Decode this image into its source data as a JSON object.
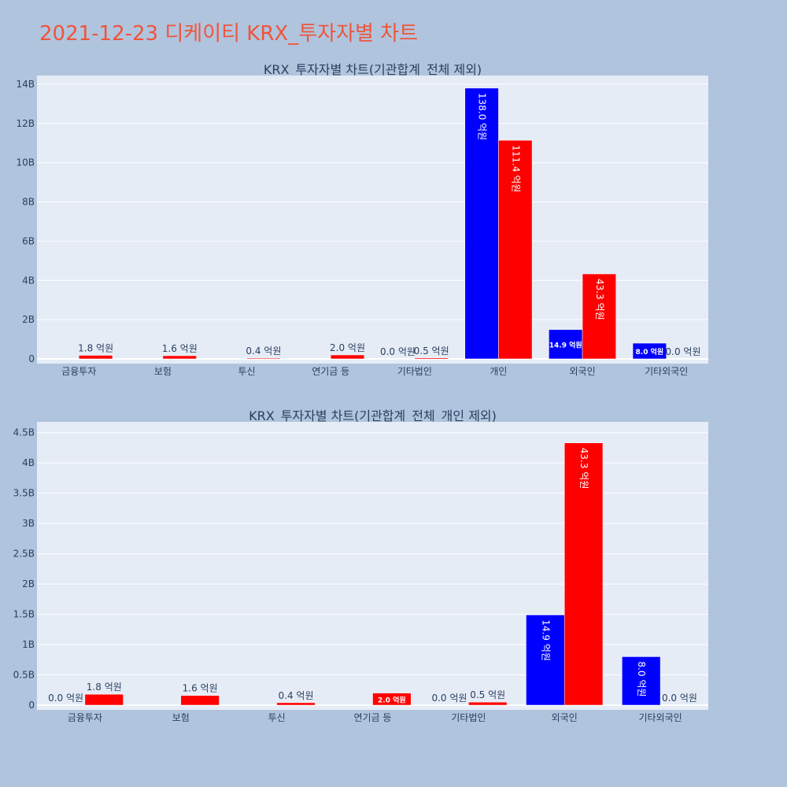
{
  "page_title": "2021-12-23 디케이티 KRX_투자자별 차트",
  "colors": {
    "buy": "#0000ff",
    "sell": "#ff0000",
    "plot_bg": "#e5ecf6",
    "page_bg": "#b0c4de",
    "title": "#ef553b"
  },
  "chart_data": [
    {
      "type": "bar",
      "title": "KRX_투자자별 차트(기관합계_전체 제외)",
      "categories": [
        "금융투자",
        "보험",
        "투신",
        "연기금 등",
        "기타법인",
        "개인",
        "외국인",
        "기타외국인"
      ],
      "series": [
        {
          "values": [
            null,
            null,
            null,
            null,
            0,
            13800000000,
            1490000000,
            800000000
          ],
          "labels": [
            "",
            "",
            "",
            "",
            "0.0 억원",
            "138.0 억원",
            "14.9 억원",
            "8.0 억원"
          ]
        },
        {
          "values": [
            180000000,
            160000000,
            40000000,
            200000000,
            50000000,
            11140000000,
            4330000000,
            0
          ],
          "labels": [
            "1.8 억원",
            "1.6 억원",
            "0.4 억원",
            "2.0 억원",
            "0.5 억원",
            "111.4 억원",
            "43.3 억원",
            "0.0 억원"
          ]
        }
      ],
      "ylim": [
        0,
        14200000000
      ],
      "yticks": [
        0,
        2000000000,
        4000000000,
        6000000000,
        8000000000,
        10000000000,
        12000000000,
        14000000000
      ],
      "ytick_labels": [
        "0",
        "2B",
        "4B",
        "6B",
        "8B",
        "10B",
        "12B",
        "14B"
      ],
      "grid": true
    },
    {
      "type": "bar",
      "title": "KRX_투자자별 차트(기관합계_전체_개인 제외)",
      "categories": [
        "금융투자",
        "보험",
        "투신",
        "연기금 등",
        "기타법인",
        "외국인",
        "기타외국인"
      ],
      "series": [
        {
          "values": [
            0,
            null,
            null,
            null,
            0,
            1490000000,
            800000000
          ],
          "labels": [
            "0.0 억원",
            "",
            "",
            "",
            "0.0 억원",
            "14.9 억원",
            "8.0 억원"
          ]
        },
        {
          "values": [
            180000000,
            160000000,
            40000000,
            200000000,
            50000000,
            4330000000,
            0
          ],
          "labels": [
            "1.8 억원",
            "1.6 억원",
            "0.4 억원",
            "2.0 억원",
            "0.5 억원",
            "43.3 억원",
            "0.0 억원"
          ]
        }
      ],
      "ylim": [
        0,
        4600000000
      ],
      "yticks": [
        0,
        500000000,
        1000000000,
        1500000000,
        2000000000,
        2500000000,
        3000000000,
        3500000000,
        4000000000,
        4500000000
      ],
      "ytick_labels": [
        "0",
        "0.5B",
        "1B",
        "1.5B",
        "2B",
        "2.5B",
        "3B",
        "3.5B",
        "4B",
        "4.5B"
      ],
      "grid": true
    }
  ]
}
